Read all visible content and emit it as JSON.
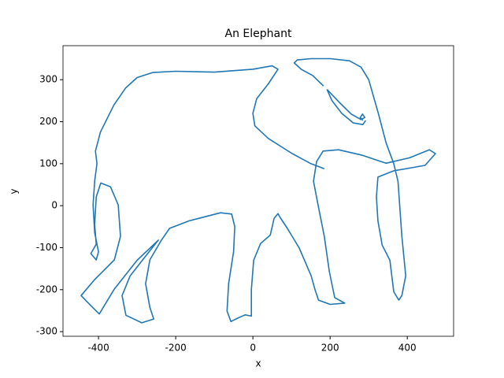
{
  "chart_data": {
    "type": "line",
    "title": "An Elephant",
    "x_label": "x",
    "y_label": "y",
    "xlim": [
      -492,
      520
    ],
    "ylim": [
      -311,
      381
    ],
    "xticks": [
      -400,
      -200,
      0,
      200,
      400
    ],
    "yticks": [
      -300,
      -200,
      -100,
      0,
      100,
      200,
      300
    ],
    "grid": false,
    "series": [
      {
        "color": "#1f77b4",
        "x": [
          183,
          155,
          125,
          107,
          115,
          150,
          200,
          250,
          280,
          300,
          325,
          345,
          365,
          376,
          386,
          396,
          386,
          378,
          365,
          355,
          335,
          324,
          320,
          324,
          365,
          446,
          473,
          457,
          406,
          345,
          284,
          222,
          182,
          165,
          157,
          171,
          185,
          198,
          212,
          238,
          200,
          170,
          161,
          151,
          120,
          90,
          69,
          65,
          55,
          45,
          20,
          2,
          -4,
          -4,
          -20,
          -40,
          -57,
          -67,
          -63,
          -50,
          -47,
          -55,
          -84,
          -165,
          -216,
          -237,
          -267,
          -278,
          -267,
          -257,
          -288,
          -329,
          -339,
          -318,
          -278,
          -245,
          -300,
          -360,
          -398,
          -420,
          -445,
          -410,
          -359,
          -343,
          -349,
          -369,
          -394,
          -406,
          -410,
          -406,
          -420,
          -406,
          -400,
          -410,
          -414,
          -410,
          -404,
          -408,
          -395,
          -360,
          -330,
          -300,
          -260,
          -200,
          -100,
          0,
          50,
          65,
          40,
          10,
          0,
          5,
          40,
          100,
          150,
          185,
          null,
          192,
          225,
          255,
          280,
          290,
          284,
          278,
          285,
          null,
          192,
          205,
          230,
          260,
          285,
          292
        ],
        "values": [
          285,
          310,
          325,
          340,
          347,
          350,
          350,
          345,
          330,
          300,
          220,
          150,
          100,
          58,
          -73,
          -167,
          -214,
          -225,
          -205,
          -130,
          -94,
          -36,
          21,
          68,
          83,
          96,
          124,
          133,
          114,
          101,
          120,
          133,
          130,
          105,
          58,
          -8,
          -73,
          -157,
          -219,
          -232,
          -235,
          -225,
          -200,
          -167,
          -101,
          -55,
          -26,
          -19,
          -30,
          -70,
          -90,
          -130,
          -200,
          -263,
          -260,
          -268,
          -276,
          -251,
          -186,
          -110,
          -50,
          -20,
          -17,
          -36,
          -54,
          -82,
          -129,
          -186,
          -242,
          -270,
          -279,
          -261,
          -214,
          -167,
          -120,
          -82,
          -130,
          -200,
          -258,
          -238,
          -214,
          -176,
          -129,
          -73,
          2,
          45,
          54,
          21,
          -45,
          -92,
          -114,
          -129,
          -110,
          -64,
          2,
          58,
          100,
          130,
          175,
          240,
          280,
          305,
          317,
          320,
          318,
          325,
          333,
          325,
          290,
          255,
          220,
          190,
          160,
          125,
          100,
          88,
          null,
          277,
          245,
          218,
          205,
          210,
          218,
          210,
          203,
          null,
          277,
          250,
          220,
          197,
          193,
          203
        ]
      }
    ]
  }
}
